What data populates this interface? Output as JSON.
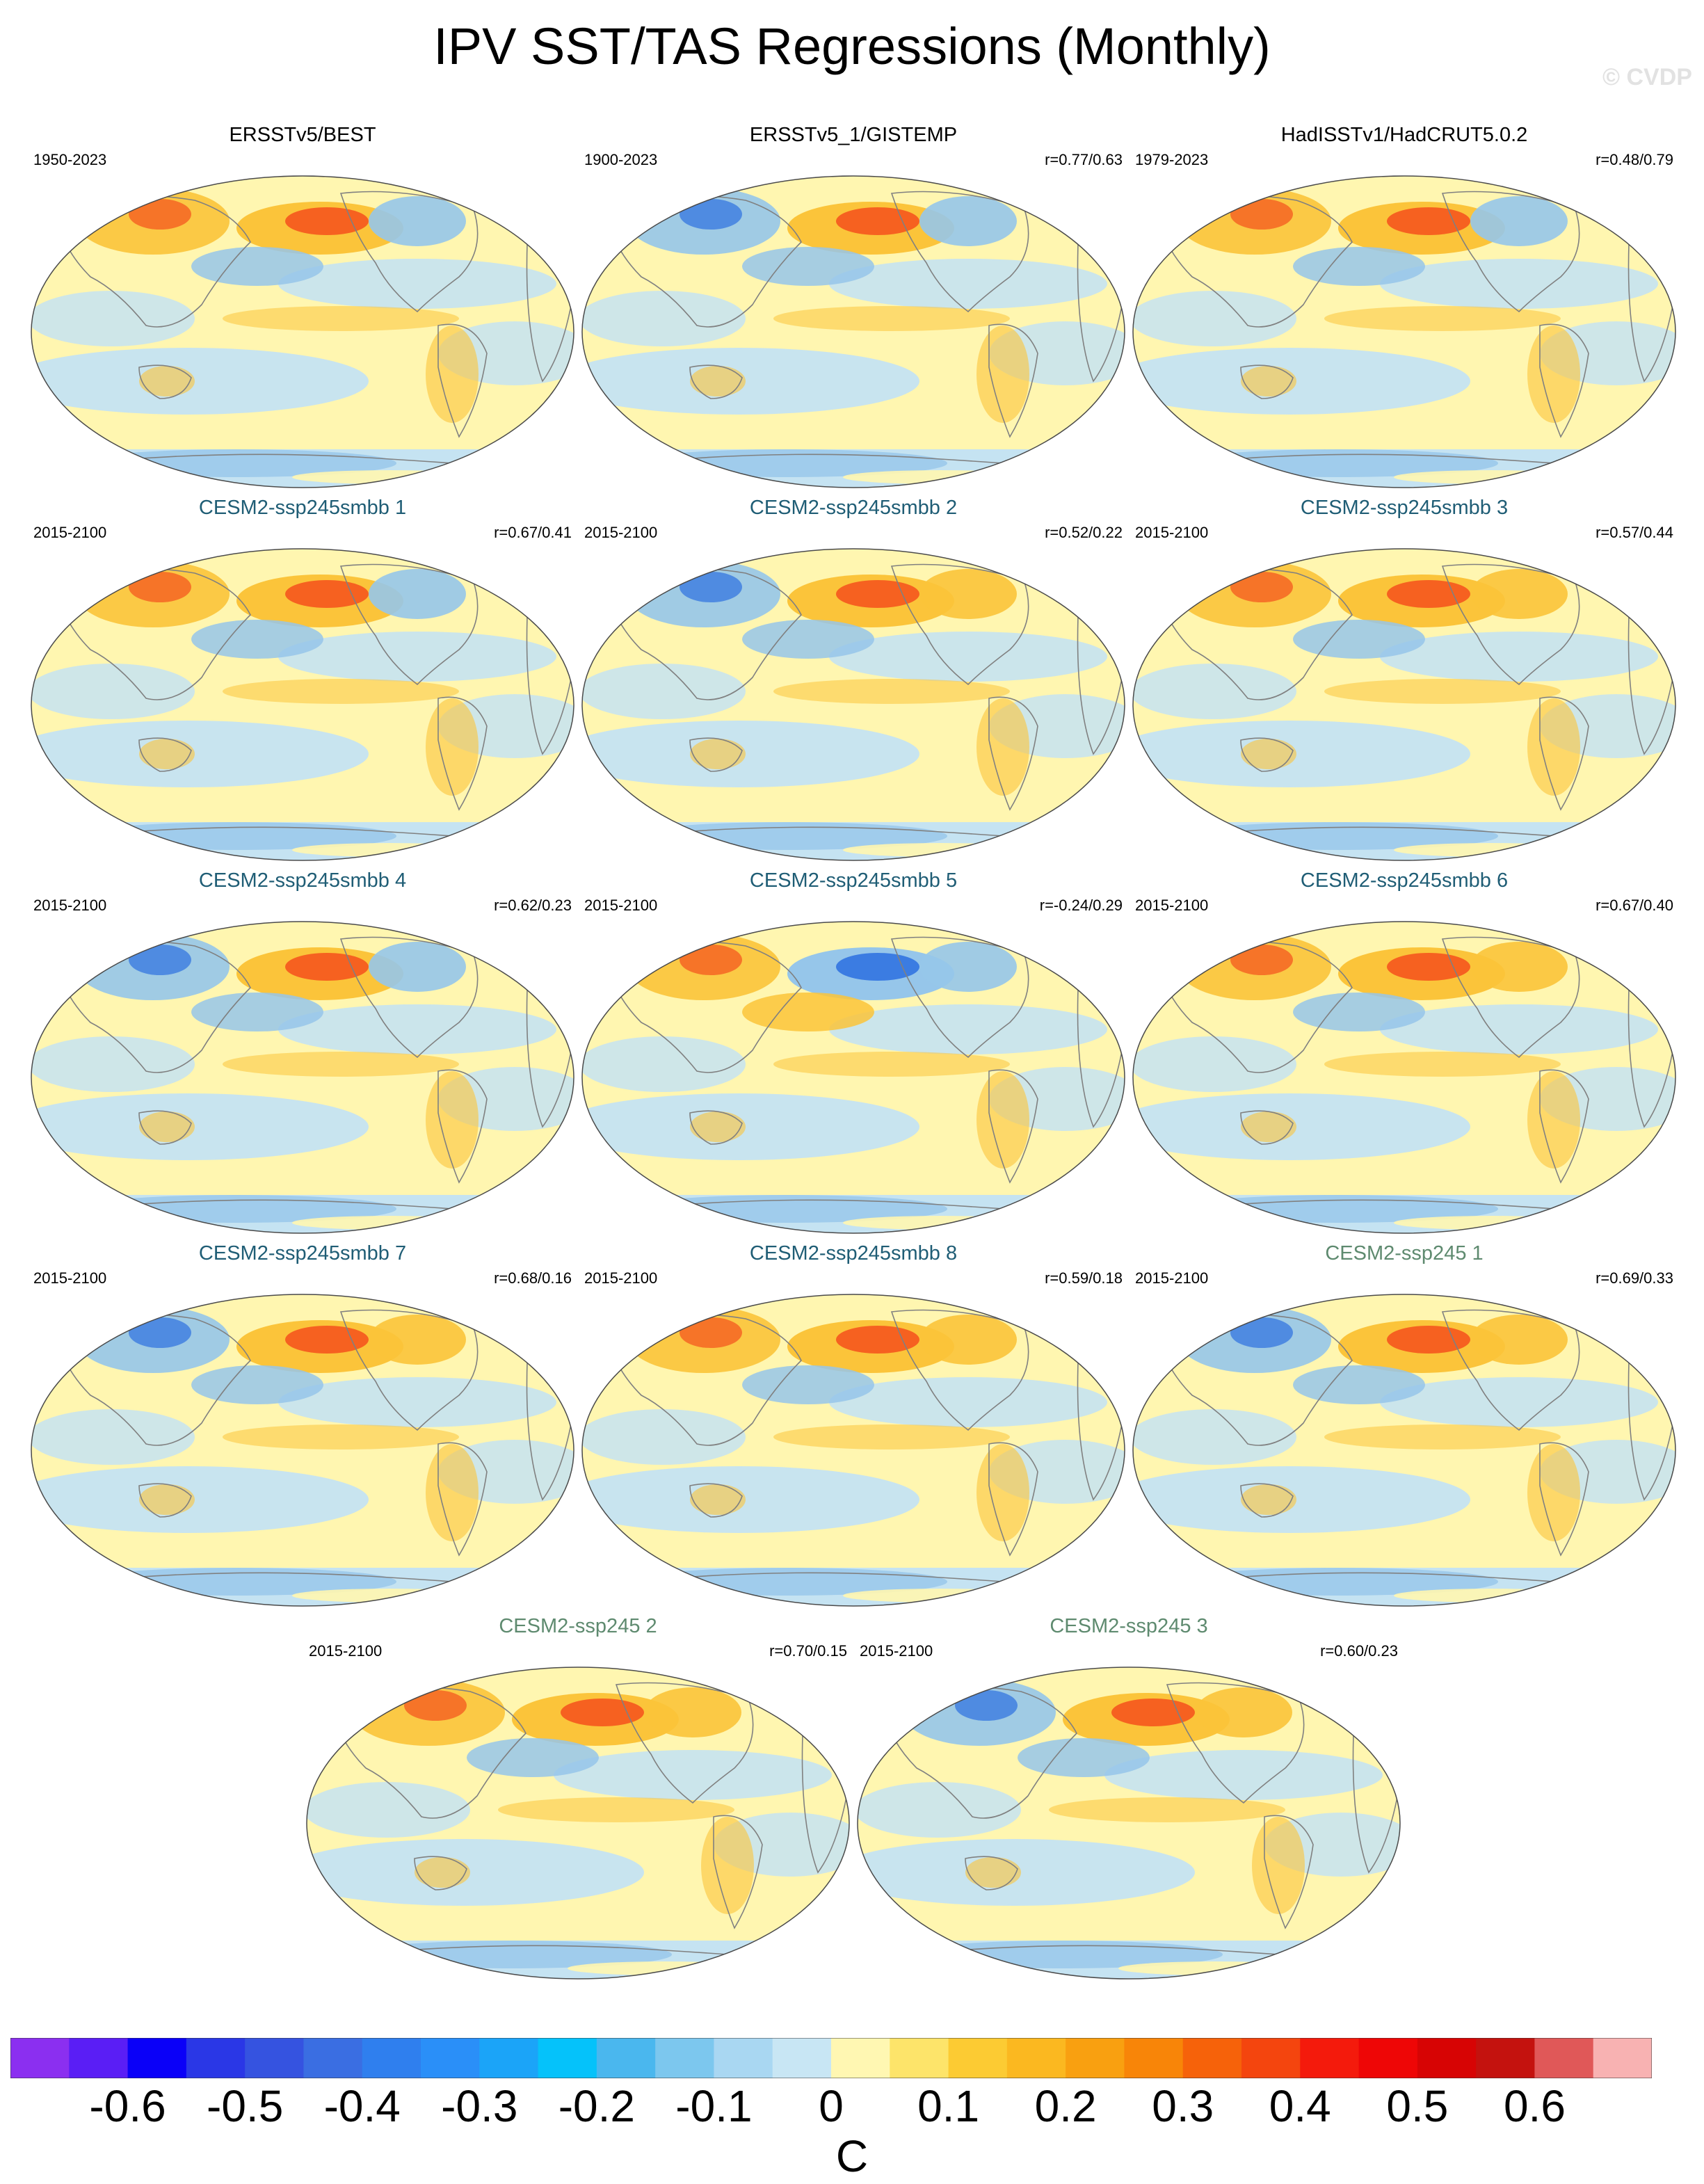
{
  "title": "IPV SST/TAS Regressions (Monthly)",
  "copyright": "© CVDP",
  "colors": {
    "ocean": "#c5e3f2",
    "warm": "#fff6b0",
    "warm_mid": "#fbc43a",
    "warm_strong": "#f4501c",
    "cool_mid": "#96c6ea",
    "cool_strong": "#2c6fe0",
    "coast": "#808080"
  },
  "panels": [
    {
      "title": "ERSSTv5/BEST",
      "style": "obs",
      "years": "1950-2023",
      "corr": "",
      "ne_pacific": "warm",
      "nw_atlantic": "cool",
      "asia": "warm"
    },
    {
      "title": "ERSSTv5_1/GISTEMP",
      "style": "obs",
      "years": "1900-2023",
      "corr": "r=0.77/0.63",
      "ne_pacific": "warm",
      "nw_atlantic": "cool",
      "asia": "cool"
    },
    {
      "title": "HadISSTv1/HadCRUT5.0.2",
      "style": "obs",
      "years": "1979-2023",
      "corr": "r=0.48/0.79",
      "ne_pacific": "warm",
      "nw_atlantic": "cool",
      "asia": "warm"
    },
    {
      "title": "CESM2-ssp245smbb 1",
      "style": "smbb",
      "years": "2015-2100",
      "corr": "r=0.67/0.41",
      "ne_pacific": "warm",
      "nw_atlantic": "cool",
      "asia": "warm"
    },
    {
      "title": "CESM2-ssp245smbb 2",
      "style": "smbb",
      "years": "2015-2100",
      "corr": "r=0.52/0.22",
      "ne_pacific": "warm",
      "nw_atlantic": "warm",
      "asia": "cool"
    },
    {
      "title": "CESM2-ssp245smbb 3",
      "style": "smbb",
      "years": "2015-2100",
      "corr": "r=0.57/0.44",
      "ne_pacific": "warm",
      "nw_atlantic": "warm",
      "asia": "warm"
    },
    {
      "title": "CESM2-ssp245smbb 4",
      "style": "smbb",
      "years": "2015-2100",
      "corr": "r=0.62/0.23",
      "ne_pacific": "warm",
      "nw_atlantic": "cool",
      "asia": "cool"
    },
    {
      "title": "CESM2-ssp245smbb 5",
      "style": "smbb",
      "years": "2015-2100",
      "corr": "r=-0.24/0.29",
      "ne_pacific": "cool",
      "nw_atlantic": "cool",
      "asia": "warm"
    },
    {
      "title": "CESM2-ssp245smbb 6",
      "style": "smbb",
      "years": "2015-2100",
      "corr": "r=0.67/0.40",
      "ne_pacific": "warm",
      "nw_atlantic": "warm",
      "asia": "warm"
    },
    {
      "title": "CESM2-ssp245smbb 7",
      "style": "smbb",
      "years": "2015-2100",
      "corr": "r=0.68/0.16",
      "ne_pacific": "warm",
      "nw_atlantic": "warm",
      "asia": "cool"
    },
    {
      "title": "CESM2-ssp245smbb 8",
      "style": "smbb",
      "years": "2015-2100",
      "corr": "r=0.59/0.18",
      "ne_pacific": "warm",
      "nw_atlantic": "warm",
      "asia": "warm"
    },
    {
      "title": "CESM2-ssp245 1",
      "style": "plain",
      "years": "2015-2100",
      "corr": "r=0.69/0.33",
      "ne_pacific": "warm",
      "nw_atlantic": "warm",
      "asia": "cool"
    },
    {
      "title": "CESM2-ssp245 2",
      "style": "plain",
      "years": "2015-2100",
      "corr": "r=0.70/0.15",
      "ne_pacific": "warm",
      "nw_atlantic": "warm",
      "asia": "warm"
    },
    {
      "title": "CESM2-ssp245 3",
      "style": "plain",
      "years": "2015-2100",
      "corr": "r=0.60/0.23",
      "ne_pacific": "warm",
      "nw_atlantic": "warm",
      "asia": "cool"
    }
  ],
  "colorbar": {
    "unit": "C",
    "tick_labels": [
      "-0.6",
      "-0.5",
      "-0.4",
      "-0.3",
      "-0.2",
      "-0.1",
      "0",
      "0.1",
      "0.2",
      "0.3",
      "0.4",
      "0.5",
      "0.6"
    ],
    "colors": [
      "#8b2ff0",
      "#5a1ef5",
      "#0a00f8",
      "#2a37e6",
      "#3553e0",
      "#3a6ee2",
      "#2f7fee",
      "#2a8ff8",
      "#1ba4f8",
      "#05c2fa",
      "#4ab7ee",
      "#7cc7ee",
      "#a9d7f2",
      "#c8e6f4",
      "#fff7b2",
      "#fde46a",
      "#fccb33",
      "#fbb820",
      "#f9a010",
      "#f88508",
      "#f6620a",
      "#f4450e",
      "#f41a0c",
      "#ee0606",
      "#d70404",
      "#c4120e",
      "#e05858",
      "#f8b2b2"
    ]
  }
}
